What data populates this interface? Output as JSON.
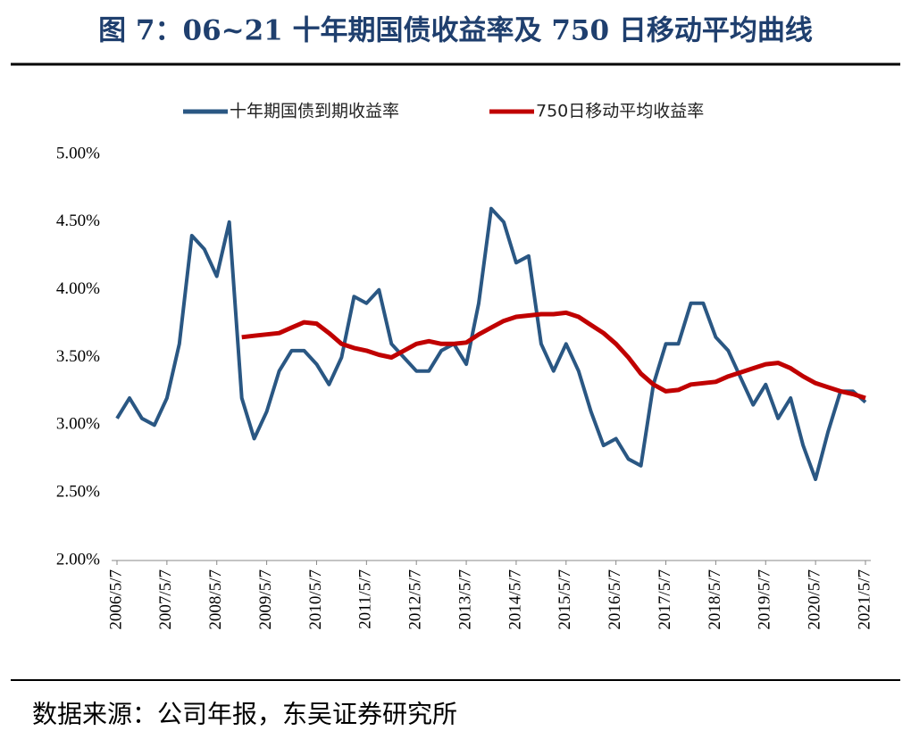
{
  "chart_data": {
    "type": "line",
    "title": "图 7：06~21 十年期国债收益率及 750 日移动平均曲线",
    "source": "数据来源：公司年报，东吴证券研究所",
    "categories": [
      "2006/5/7",
      null,
      null,
      null,
      "2007/5/7",
      null,
      null,
      null,
      "2008/5/7",
      null,
      null,
      null,
      "2009/5/7",
      null,
      null,
      null,
      "2010/5/7",
      null,
      null,
      null,
      "2011/5/7",
      null,
      null,
      null,
      "2012/5/7",
      null,
      null,
      null,
      "2013/5/7",
      null,
      null,
      null,
      "2014/5/7",
      null,
      null,
      null,
      "2015/5/7",
      null,
      null,
      null,
      "2016/5/7",
      null,
      null,
      null,
      "2017/5/7",
      null,
      null,
      null,
      "2018/5/7",
      null,
      null,
      null,
      "2019/5/7",
      null,
      null,
      null,
      "2020/5/7",
      null,
      null,
      null,
      "2021/5/7"
    ],
    "series": [
      {
        "name": "十年期国债到期收益率",
        "color": "#2a5783",
        "values": [
          3.05,
          3.2,
          3.05,
          3.0,
          3.2,
          3.6,
          4.4,
          4.3,
          4.1,
          4.5,
          3.2,
          2.9,
          3.1,
          3.4,
          3.55,
          3.55,
          3.45,
          3.3,
          3.5,
          3.95,
          3.9,
          4.0,
          3.6,
          3.5,
          3.4,
          3.4,
          3.55,
          3.6,
          3.45,
          3.9,
          4.6,
          4.5,
          4.2,
          4.25,
          3.6,
          3.4,
          3.6,
          3.4,
          3.1,
          2.85,
          2.9,
          2.75,
          2.7,
          3.3,
          3.6,
          3.6,
          3.9,
          3.9,
          3.65,
          3.55,
          3.35,
          3.15,
          3.3,
          3.05,
          3.2,
          2.85,
          2.6,
          2.95,
          3.25,
          3.25,
          3.17
        ]
      },
      {
        "name": "750日移动平均收益率",
        "color": "#c00000",
        "values": [
          null,
          null,
          null,
          null,
          null,
          null,
          null,
          null,
          null,
          null,
          3.65,
          3.66,
          3.67,
          3.68,
          3.72,
          3.76,
          3.75,
          3.68,
          3.6,
          3.57,
          3.55,
          3.52,
          3.5,
          3.55,
          3.6,
          3.62,
          3.6,
          3.6,
          3.61,
          3.67,
          3.72,
          3.77,
          3.8,
          3.81,
          3.82,
          3.82,
          3.83,
          3.8,
          3.74,
          3.68,
          3.6,
          3.5,
          3.38,
          3.3,
          3.25,
          3.26,
          3.3,
          3.31,
          3.32,
          3.36,
          3.39,
          3.42,
          3.45,
          3.46,
          3.42,
          3.36,
          3.31,
          3.28,
          3.25,
          3.23,
          3.2
        ]
      }
    ],
    "ylim": [
      2,
      5
    ],
    "yticks": [
      {
        "value": 2,
        "label": "2.00%"
      },
      {
        "value": 2.5,
        "label": "2.50%"
      },
      {
        "value": 3,
        "label": "3.00%"
      },
      {
        "value": 3.5,
        "label": "3.50%"
      },
      {
        "value": 4,
        "label": "4.00%"
      },
      {
        "value": 4.5,
        "label": "4.50%"
      },
      {
        "value": 5,
        "label": "5.00%"
      }
    ],
    "grid": false
  }
}
